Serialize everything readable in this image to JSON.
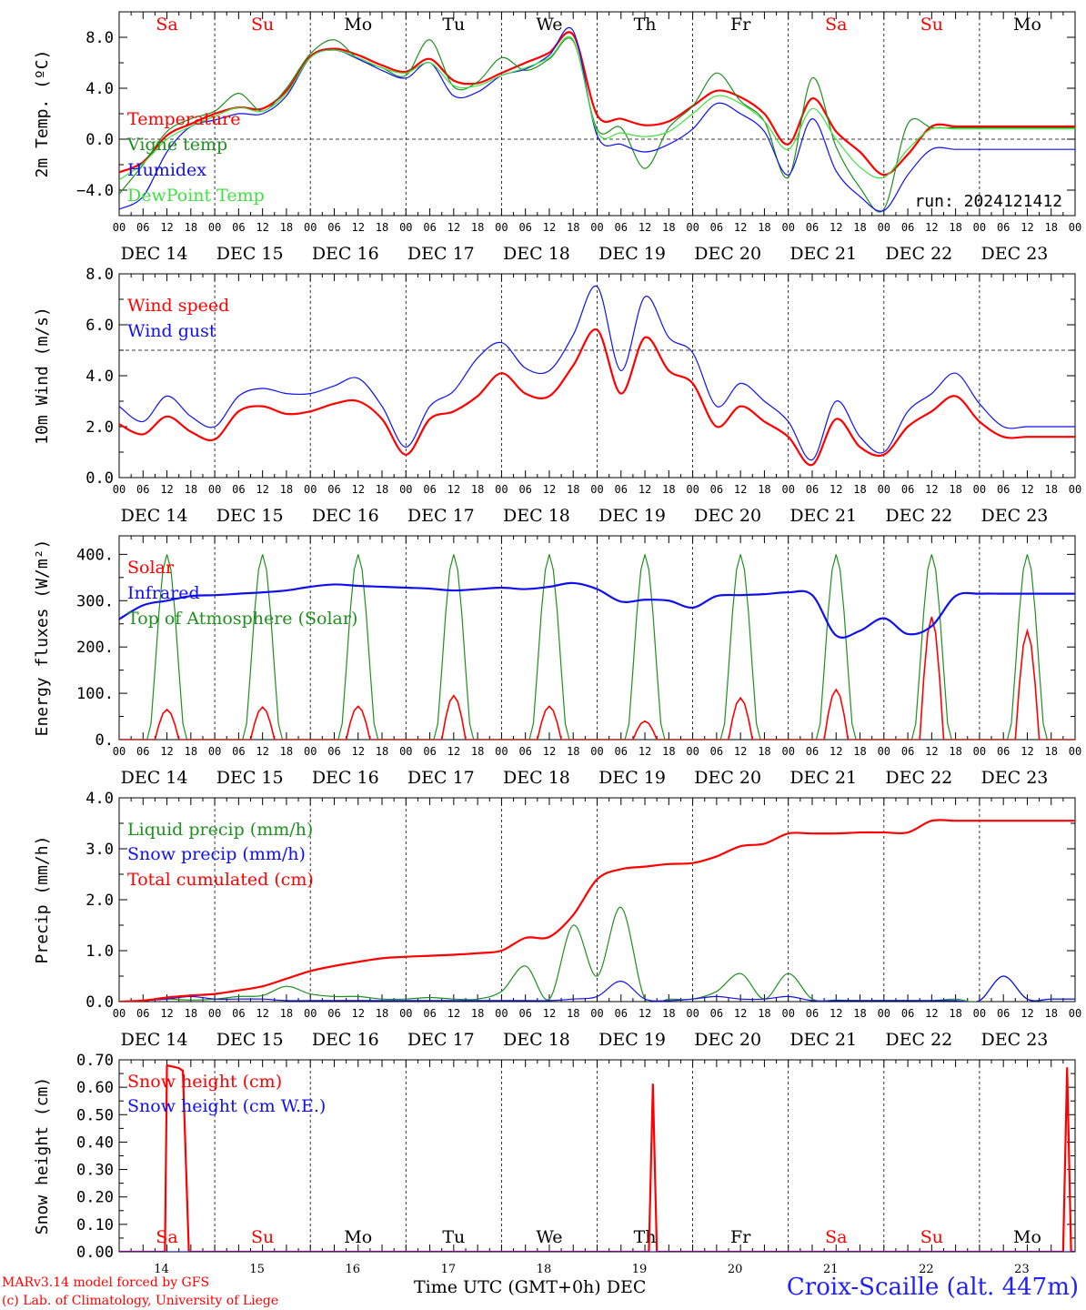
{
  "days": [
    "DEC 14",
    "DEC 15",
    "DEC 16",
    "DEC 17",
    "DEC 18",
    "DEC 19",
    "DEC 20",
    "DEC 21",
    "DEC 22",
    "DEC 23"
  ],
  "weekdays": [
    "Sa",
    "Su",
    "Mo",
    "Tu",
    "We",
    "Th",
    "Fr",
    "Sa",
    "Su",
    "Mo"
  ],
  "weekday_colors": [
    "#ff0000",
    "#ff0000",
    "#000000",
    "#000000",
    "#000000",
    "#000000",
    "#000000",
    "#ff0000",
    "#ff0000",
    "#000000"
  ],
  "hour_labels": [
    "00",
    "06",
    "12",
    "18"
  ],
  "bottom_day_numbers": [
    "14",
    "15",
    "16",
    "17",
    "18",
    "19",
    "20",
    "21",
    "22",
    "23"
  ],
  "x_axis_title": "Time UTC (GMT+0h)",
  "x_axis_month": "DEC",
  "credits": [
    "MARv3.14 model forced by GFS",
    "(c) Lab. of Climatology, University of Liege"
  ],
  "station": "Croix-Scaille (alt. 447m)",
  "colors": {
    "red": "#ff0000",
    "green": "#1f8f1f",
    "blue": "#1010ee",
    "lightgreen": "#40e040"
  },
  "chart_data": [
    {
      "type": "line",
      "ylabel": "2m Temp. (ºC)",
      "ylim": [
        -6,
        10
      ],
      "yticks": [
        -4,
        0,
        4,
        8
      ],
      "ytick_labels": [
        "−4.0",
        "0.0",
        "4.0",
        "8.0"
      ],
      "hline": 0,
      "run_label": "run: 2024121412",
      "x": [
        0,
        6,
        12,
        18,
        24,
        30,
        36,
        42,
        48,
        54,
        60,
        66,
        72,
        78,
        84,
        90,
        96,
        102,
        108,
        114,
        120,
        126,
        132,
        138,
        144,
        150,
        156,
        162,
        168,
        174,
        180,
        186,
        192,
        198,
        204,
        210,
        216,
        222,
        228,
        234,
        240
      ],
      "series": [
        {
          "name": "Temperature",
          "color": "#ff0000",
          "width": 2,
          "values": [
            -2.6,
            -1.8,
            0.3,
            1.2,
            2.0,
            2.5,
            2.4,
            3.8,
            6.5,
            7.1,
            6.6,
            5.8,
            5.3,
            6.3,
            4.6,
            4.4,
            5.2,
            6.0,
            6.8,
            8.2,
            1.9,
            1.6,
            1.1,
            1.4,
            2.6,
            3.8,
            3.3,
            2.0,
            -0.4,
            3.2,
            0.6,
            -1.0,
            -2.8,
            -1.2,
            1.0,
            1.0,
            1.0,
            1.0,
            1.0,
            1.0,
            1.0
          ]
        },
        {
          "name": "Vigne temp",
          "color": "#1f8f1f",
          "width": 1,
          "values": [
            -4.3,
            -2.0,
            0.6,
            1.6,
            2.2,
            3.6,
            2.2,
            4.0,
            6.7,
            7.8,
            6.3,
            5.6,
            5.0,
            7.8,
            4.1,
            4.5,
            6.4,
            5.4,
            6.3,
            7.7,
            0.8,
            0.9,
            -2.3,
            0.9,
            2.6,
            5.2,
            3.0,
            1.4,
            -3.0,
            4.8,
            -0.6,
            -3.8,
            -5.5,
            1.2,
            0.9,
            0.9,
            0.9,
            0.9,
            0.9,
            0.9,
            0.9
          ]
        },
        {
          "name": "Humidex",
          "color": "#1010ee",
          "width": 1,
          "values": [
            -5.5,
            -4.5,
            -1.0,
            1.0,
            1.5,
            2.0,
            2.0,
            3.4,
            6.4,
            7.0,
            6.3,
            5.4,
            4.8,
            6.0,
            3.4,
            3.7,
            5.0,
            5.5,
            6.6,
            8.5,
            0.3,
            -0.4,
            -1.0,
            -0.4,
            0.8,
            2.8,
            2.0,
            0.6,
            -2.8,
            1.6,
            -2.5,
            -4.5,
            -5.6,
            -2.8,
            -0.8,
            -0.8,
            -0.8,
            -0.8,
            -0.8,
            -0.8,
            -0.8
          ]
        },
        {
          "name": "DewPoint Temp",
          "color": "#40e040",
          "width": 1,
          "values": [
            -3.2,
            -1.9,
            0.0,
            1.0,
            1.8,
            2.5,
            2.2,
            3.6,
            6.4,
            7.0,
            6.4,
            5.6,
            5.2,
            6.0,
            4.2,
            4.2,
            5.0,
            5.6,
            6.4,
            7.8,
            0.6,
            0.5,
            0.2,
            0.6,
            2.0,
            3.4,
            2.8,
            1.4,
            -0.8,
            2.4,
            0.0,
            -2.2,
            -3.0,
            -0.8,
            0.8,
            0.8,
            0.8,
            0.8,
            0.8,
            0.8,
            0.8
          ]
        }
      ]
    },
    {
      "type": "line",
      "ylabel": "10m Wind (m/s)",
      "ylim": [
        0,
        8
      ],
      "yticks": [
        0,
        2,
        4,
        6,
        8
      ],
      "ytick_labels": [
        "0.0",
        "2.0",
        "4.0",
        "6.0",
        "8.0"
      ],
      "hline": 5,
      "x": [
        0,
        6,
        12,
        18,
        24,
        30,
        36,
        42,
        48,
        54,
        60,
        66,
        72,
        78,
        84,
        90,
        96,
        102,
        108,
        114,
        120,
        126,
        132,
        138,
        144,
        150,
        156,
        162,
        168,
        174,
        180,
        186,
        192,
        198,
        204,
        210,
        216,
        222,
        228,
        234,
        240
      ],
      "series": [
        {
          "name": "Wind speed",
          "color": "#ff0000",
          "width": 2,
          "values": [
            2.1,
            1.7,
            2.4,
            1.8,
            1.5,
            2.6,
            2.8,
            2.5,
            2.6,
            2.9,
            3.0,
            2.3,
            0.9,
            2.3,
            2.6,
            3.2,
            4.1,
            3.3,
            3.2,
            4.4,
            5.8,
            3.3,
            5.5,
            4.2,
            3.7,
            2.0,
            2.8,
            2.2,
            1.6,
            0.5,
            2.3,
            1.2,
            0.9,
            2.0,
            2.6,
            3.2,
            2.2,
            1.6,
            1.6,
            1.6,
            1.6
          ]
        },
        {
          "name": "Wind gust",
          "color": "#1010ee",
          "width": 1,
          "values": [
            2.8,
            2.2,
            3.2,
            2.4,
            2.0,
            3.2,
            3.5,
            3.3,
            3.3,
            3.6,
            3.9,
            2.8,
            1.2,
            2.8,
            3.4,
            4.7,
            5.3,
            4.3,
            4.2,
            5.6,
            7.5,
            4.2,
            7.1,
            5.5,
            4.9,
            2.8,
            3.7,
            3.0,
            2.2,
            0.7,
            3.0,
            1.6,
            1.0,
            2.6,
            3.3,
            4.1,
            2.9,
            2.0,
            2.0,
            2.0,
            2.0
          ]
        }
      ]
    },
    {
      "type": "line",
      "ylabel": "Energy fluxes (W/m²)",
      "ylim": [
        0,
        440
      ],
      "yticks": [
        0,
        100,
        200,
        300,
        400
      ],
      "ytick_labels": [
        "0.",
        "100.",
        "200.",
        "300.",
        "400."
      ],
      "x": [
        0,
        6,
        12,
        18,
        24,
        30,
        36,
        42,
        48,
        54,
        60,
        66,
        72,
        78,
        84,
        90,
        96,
        102,
        108,
        114,
        120,
        126,
        132,
        138,
        144,
        150,
        156,
        162,
        168,
        174,
        180,
        186,
        192,
        198,
        204,
        210,
        216,
        222,
        228,
        234,
        240
      ],
      "daily_peak_hour": 12,
      "toa_peak": 400,
      "solar_peaks": [
        65,
        70,
        72,
        95,
        72,
        40,
        90,
        108,
        265,
        235
      ],
      "series": [
        {
          "name": "Infrared",
          "color": "#1010ee",
          "width": 2,
          "values": [
            260,
            290,
            300,
            310,
            312,
            315,
            318,
            322,
            330,
            335,
            332,
            330,
            328,
            326,
            322,
            325,
            328,
            325,
            330,
            338,
            325,
            298,
            302,
            300,
            285,
            310,
            312,
            314,
            318,
            312,
            225,
            235,
            262,
            228,
            245,
            310,
            315,
            315,
            315,
            315,
            315
          ]
        }
      ],
      "legend": [
        "Solar",
        "Infrared",
        "Top of Atmosphere (Solar)"
      ]
    },
    {
      "type": "line",
      "ylabel": "Precip (mm/h)",
      "ylim": [
        0,
        4
      ],
      "yticks": [
        0,
        1,
        2,
        3,
        4
      ],
      "ytick_labels": [
        "0.0",
        "1.0",
        "2.0",
        "3.0",
        "4.0"
      ],
      "x": [
        0,
        6,
        12,
        18,
        24,
        30,
        36,
        42,
        48,
        54,
        60,
        66,
        72,
        78,
        84,
        90,
        96,
        102,
        108,
        114,
        120,
        126,
        132,
        138,
        144,
        150,
        156,
        162,
        168,
        174,
        180,
        186,
        192,
        198,
        204,
        210,
        216,
        222,
        228,
        234,
        240
      ],
      "series": [
        {
          "name": "Liquid precip (mm/h)",
          "color": "#1f8f1f",
          "width": 1,
          "values": [
            0,
            0.02,
            0.05,
            0.03,
            0.05,
            0.1,
            0.12,
            0.3,
            0.15,
            0.1,
            0.1,
            0.05,
            0.05,
            0.08,
            0.05,
            0.05,
            0.2,
            0.7,
            0.05,
            1.5,
            0.5,
            1.85,
            0.05,
            0.05,
            0.05,
            0.2,
            0.55,
            0.05,
            0.55,
            0.05,
            0.03,
            0.02,
            0.02,
            0.02,
            0.02,
            0.05,
            0.02,
            0.5,
            0.05,
            0.05,
            0.05
          ]
        },
        {
          "name": "Snow precip (mm/h)",
          "color": "#1010ee",
          "width": 1,
          "values": [
            0,
            0.02,
            0.05,
            0.1,
            0.05,
            0.05,
            0.05,
            0.02,
            0.02,
            0.02,
            0.02,
            0.02,
            0.02,
            0.02,
            0.02,
            0.02,
            0.02,
            0.02,
            0.02,
            0.05,
            0.1,
            0.4,
            0.05,
            0.02,
            0.05,
            0.1,
            0.05,
            0.05,
            0.1,
            0.02,
            0.02,
            0.02,
            0.02,
            0.02,
            0.02,
            0.02,
            0.02,
            0.5,
            0.05,
            0.05,
            0.05
          ]
        },
        {
          "name": "Total cumulated (cm)",
          "color": "#ff0000",
          "width": 2,
          "values": [
            0,
            0.02,
            0.08,
            0.12,
            0.15,
            0.22,
            0.3,
            0.45,
            0.6,
            0.7,
            0.78,
            0.85,
            0.88,
            0.9,
            0.92,
            0.95,
            1.0,
            1.25,
            1.27,
            1.7,
            2.4,
            2.6,
            2.65,
            2.7,
            2.72,
            2.85,
            3.05,
            3.1,
            3.3,
            3.3,
            3.3,
            3.32,
            3.32,
            3.32,
            3.55,
            3.55,
            3.55,
            3.55,
            3.55,
            3.55,
            3.55
          ]
        }
      ]
    },
    {
      "type": "line",
      "ylabel": "Snow height (cm)",
      "ylim": [
        0,
        0.7
      ],
      "yticks": [
        0,
        0.1,
        0.2,
        0.3,
        0.4,
        0.5,
        0.6,
        0.7
      ],
      "ytick_labels": [
        "0.00",
        "0.10",
        "0.20",
        "0.30",
        "0.40",
        "0.50",
        "0.60",
        "0.70"
      ],
      "series": [
        {
          "name": "Snow height (cm)",
          "color": "#ff0000",
          "width": 2,
          "points": [
            [
              0,
              0
            ],
            [
              11.5,
              0
            ],
            [
              12,
              0.68
            ],
            [
              15,
              0.67
            ],
            [
              16,
              0.66
            ],
            [
              17.5,
              0
            ],
            [
              133,
              0
            ],
            [
              134,
              0.61
            ],
            [
              135,
              0
            ],
            [
              237,
              0
            ],
            [
              238,
              0.67
            ],
            [
              239,
              0
            ],
            [
              240,
              0
            ]
          ]
        },
        {
          "name": "Snow height (cm W.E.)",
          "color": "#1010ee",
          "width": 1,
          "points": [
            [
              0,
              0
            ],
            [
              240,
              0
            ]
          ]
        }
      ]
    }
  ]
}
